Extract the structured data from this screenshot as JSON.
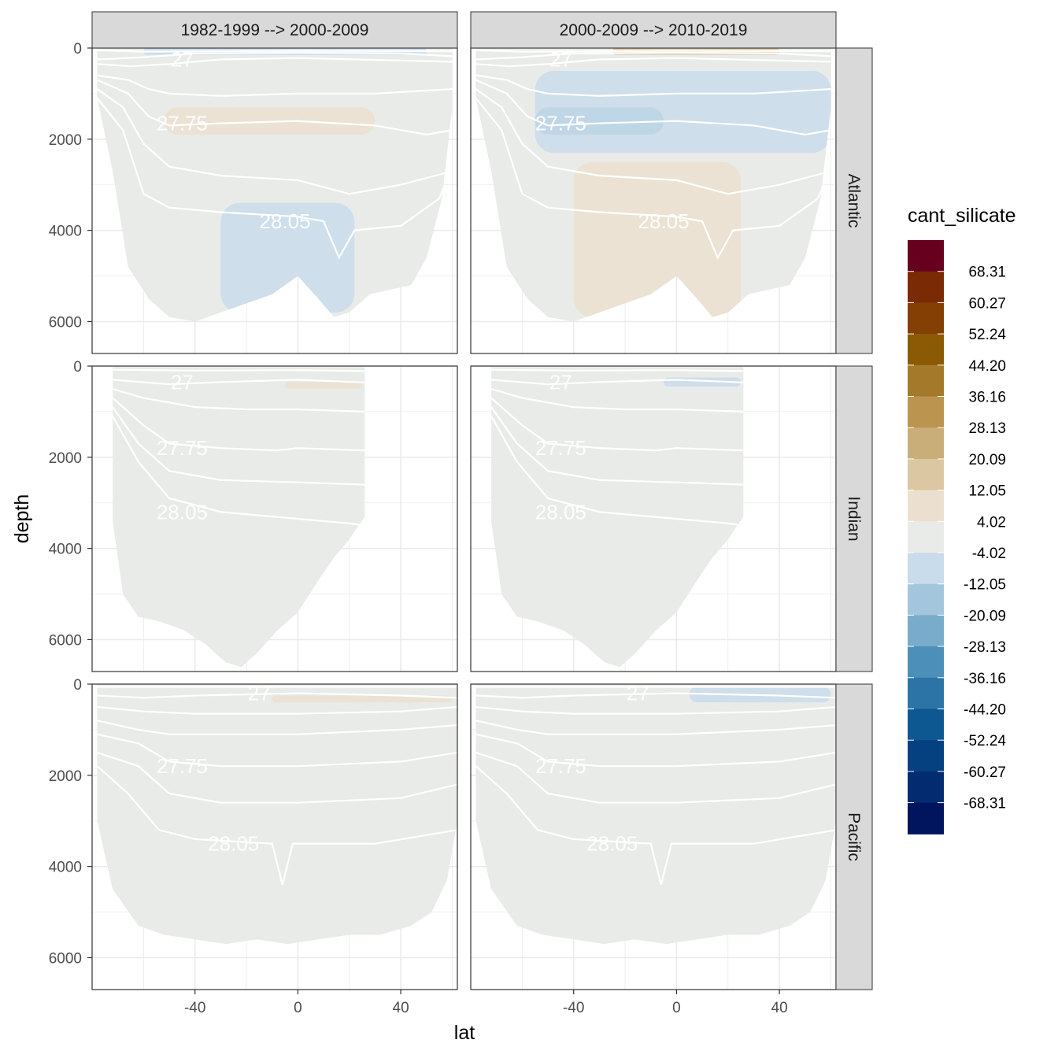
{
  "chart_data": {
    "type": "heatmap",
    "title": "",
    "xlabel": "lat",
    "ylabel": "depth",
    "xlim": [
      -80,
      62
    ],
    "ylim": [
      6700,
      0
    ],
    "x_ticks": [
      -40,
      0,
      40
    ],
    "y_ticks": [
      0,
      2000,
      4000,
      6000
    ],
    "column_strips": [
      "1982-1999 --> 2000-2009",
      "2000-2009 --> 2010-2019"
    ],
    "row_strips": [
      "Atlantic",
      "Indian",
      "Pacific"
    ],
    "legend": {
      "title": "cant_silicate",
      "position": "right",
      "breaks": [
        "68.31",
        "60.27",
        "52.24",
        "44.20",
        "36.16",
        "28.13",
        "20.09",
        "12.05",
        "4.02",
        "-4.02",
        "-12.05",
        "-20.09",
        "-28.13",
        "-36.16",
        "-44.20",
        "-52.24",
        "-60.27",
        "-68.31"
      ],
      "colors": [
        "#67001f",
        "#7a2a04",
        "#843f04",
        "#8b5a05",
        "#a47a2a",
        "#bb954f",
        "#c9ae79",
        "#dbc8a2",
        "#ebe0cf",
        "#e9ebe8",
        "#c9dceb",
        "#a3c6dc",
        "#78acca",
        "#4c8fb9",
        "#2c74a6",
        "#0e5891",
        "#054081",
        "#032c70",
        "#00155e"
      ]
    },
    "isopycnal_labels": [
      "27",
      "27.75",
      "28.05"
    ],
    "panels": [
      {
        "basin": "Atlantic",
        "period": "1982-1999 --> 2000-2009",
        "features": [
          {
            "kind": "positive",
            "value": 8,
            "lat": [
              -52,
              30
            ],
            "depth": [
              1300,
              1900
            ]
          },
          {
            "kind": "negative",
            "value": -8,
            "lat": [
              -30,
              22
            ],
            "depth": [
              3400,
              5800
            ]
          },
          {
            "kind": "negative",
            "value": -8,
            "lat": [
              -60,
              50
            ],
            "depth": [
              0,
              150
            ]
          }
        ]
      },
      {
        "basin": "Atlantic",
        "period": "2000-2009 --> 2010-2019",
        "features": [
          {
            "kind": "negative",
            "value": -24,
            "lat": [
              -55,
              -5
            ],
            "depth": [
              1300,
              1900
            ]
          },
          {
            "kind": "negative",
            "value": -8,
            "lat": [
              -55,
              60
            ],
            "depth": [
              500,
              2300
            ]
          },
          {
            "kind": "positive",
            "value": 8,
            "lat": [
              -40,
              25
            ],
            "depth": [
              2500,
              5900
            ]
          },
          {
            "kind": "positive",
            "value": 20,
            "lat": [
              -25,
              40
            ],
            "depth": [
              0,
              150
            ]
          }
        ]
      },
      {
        "basin": "Indian",
        "period": "1982-1999 --> 2000-2009",
        "features": [
          {
            "kind": "positive",
            "value": 8,
            "lat": [
              -5,
              25
            ],
            "depth": [
              350,
              500
            ]
          }
        ]
      },
      {
        "basin": "Indian",
        "period": "2000-2009 --> 2010-2019",
        "features": [
          {
            "kind": "negative",
            "value": -8,
            "lat": [
              -5,
              25
            ],
            "depth": [
              250,
              450
            ]
          }
        ]
      },
      {
        "basin": "Pacific",
        "period": "1982-1999 --> 2000-2009",
        "features": [
          {
            "kind": "positive",
            "value": 8,
            "lat": [
              -10,
              60
            ],
            "depth": [
              250,
              400
            ]
          }
        ]
      },
      {
        "basin": "Pacific",
        "period": "2000-2009 --> 2010-2019",
        "features": [
          {
            "kind": "negative",
            "value": -8,
            "lat": [
              5,
              60
            ],
            "depth": [
              50,
              400
            ]
          }
        ]
      }
    ]
  }
}
